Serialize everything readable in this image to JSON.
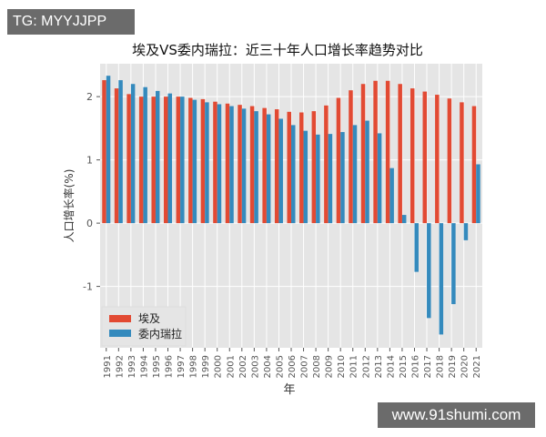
{
  "watermarks": {
    "top_left": "TG: MYYJJPP",
    "bottom_right": "www.91shumi.com"
  },
  "chart_data": {
    "type": "bar",
    "title": "埃及VS委内瑞拉：近三十年人口增长率趋势对比",
    "xlabel": "年",
    "ylabel": "人口增长率(%)",
    "ylim": [
      -1.97,
      2.52
    ],
    "yticks": [
      2,
      1,
      0,
      -1
    ],
    "grid": true,
    "legend_position": "lower-left",
    "categories": [
      "1991",
      "1992",
      "1993",
      "1994",
      "1995",
      "1996",
      "1997",
      "1998",
      "1999",
      "2000",
      "2001",
      "2002",
      "2003",
      "2004",
      "2005",
      "2006",
      "2007",
      "2008",
      "2009",
      "2010",
      "2011",
      "2012",
      "2013",
      "2014",
      "2015",
      "2016",
      "2017",
      "2018",
      "2019",
      "2020",
      "2021"
    ],
    "series": [
      {
        "name": "埃及",
        "color": "#E24A33",
        "values": [
          2.26,
          2.13,
          2.04,
          2.0,
          2.0,
          2.0,
          2.0,
          1.98,
          1.96,
          1.92,
          1.89,
          1.87,
          1.85,
          1.82,
          1.8,
          1.76,
          1.75,
          1.77,
          1.86,
          1.98,
          2.1,
          2.2,
          2.25,
          2.25,
          2.2,
          2.13,
          2.08,
          2.03,
          1.97,
          1.91,
          1.85
        ]
      },
      {
        "name": "委内瑞拉",
        "color": "#348ABD",
        "values": [
          2.33,
          2.26,
          2.2,
          2.15,
          2.09,
          2.05,
          2.0,
          1.95,
          1.91,
          1.88,
          1.85,
          1.81,
          1.77,
          1.72,
          1.65,
          1.55,
          1.46,
          1.4,
          1.41,
          1.44,
          1.55,
          1.62,
          1.42,
          0.87,
          0.13,
          -0.77,
          -1.5,
          -1.76,
          -1.28,
          -0.27,
          0.93
        ]
      }
    ]
  }
}
